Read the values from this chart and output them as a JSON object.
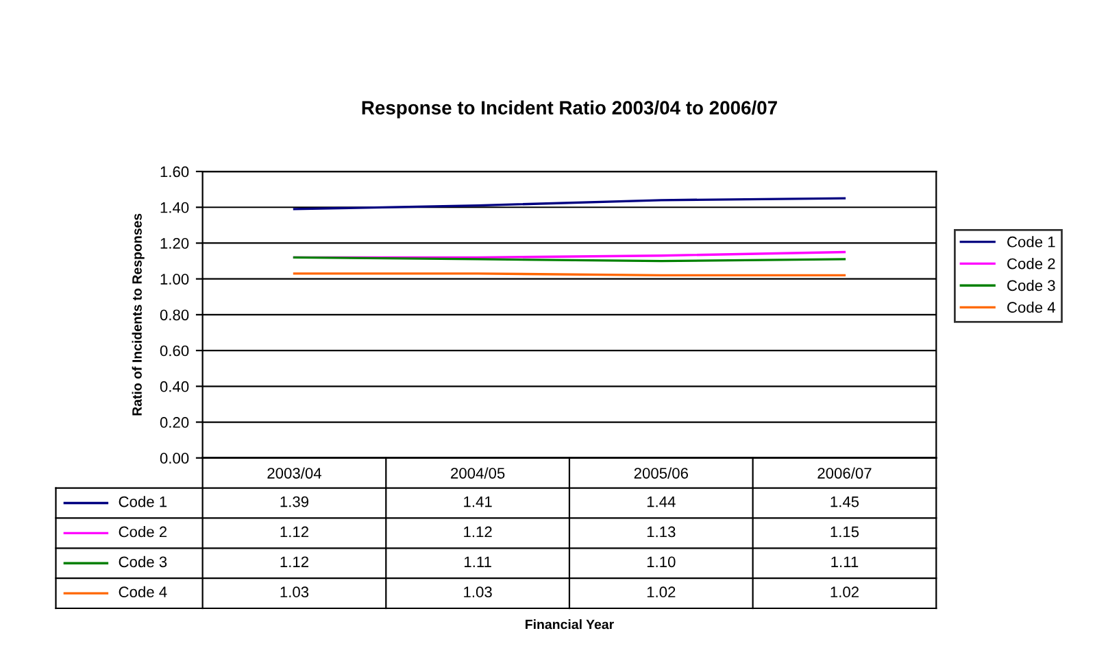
{
  "chart_data": {
    "type": "line",
    "title": "Response to Incident Ratio 2003/04 to 2006/07",
    "annotations": [
      "Financial Year"
    ],
    "ylabel": "Ratio of Incidents to Responses",
    "categories": [
      "2003/04",
      "2004/05",
      "2005/06",
      "2006/07"
    ],
    "series": [
      {
        "name": "Code 1",
        "color": "#000080",
        "values": [
          1.39,
          1.41,
          1.44,
          1.45
        ],
        "value_labels": [
          "1.39",
          "1.41",
          "1.44",
          "1.45"
        ]
      },
      {
        "name": "Code 2",
        "color": "#ff00ff",
        "values": [
          1.12,
          1.12,
          1.13,
          1.15
        ],
        "value_labels": [
          "1.12",
          "1.12",
          "1.13",
          "1.15"
        ]
      },
      {
        "name": "Code 3",
        "color": "#008000",
        "values": [
          1.12,
          1.11,
          1.1,
          1.11
        ],
        "value_labels": [
          "1.12",
          "1.11",
          "1.10",
          "1.11"
        ]
      },
      {
        "name": "Code 4",
        "color": "#ff6600",
        "values": [
          1.03,
          1.03,
          1.02,
          1.02
        ],
        "value_labels": [
          "1.03",
          "1.03",
          "1.02",
          "1.02"
        ]
      }
    ],
    "ylim": [
      0,
      1.6
    ],
    "yticks": [
      {
        "value": 0,
        "label": "0.00"
      },
      {
        "value": 0.2,
        "label": "0.20"
      },
      {
        "value": 0.4,
        "label": "0.40"
      },
      {
        "value": 0.6,
        "label": "0.60"
      },
      {
        "value": 0.8,
        "label": "0.80"
      },
      {
        "value": 1.0,
        "label": "1.00"
      },
      {
        "value": 1.2,
        "label": "1.20"
      },
      {
        "value": 1.4,
        "label": "1.40"
      },
      {
        "value": 1.6,
        "label": "1.60"
      }
    ],
    "grid": "y",
    "legend": "right",
    "marker": "none",
    "line_style": "solid"
  }
}
